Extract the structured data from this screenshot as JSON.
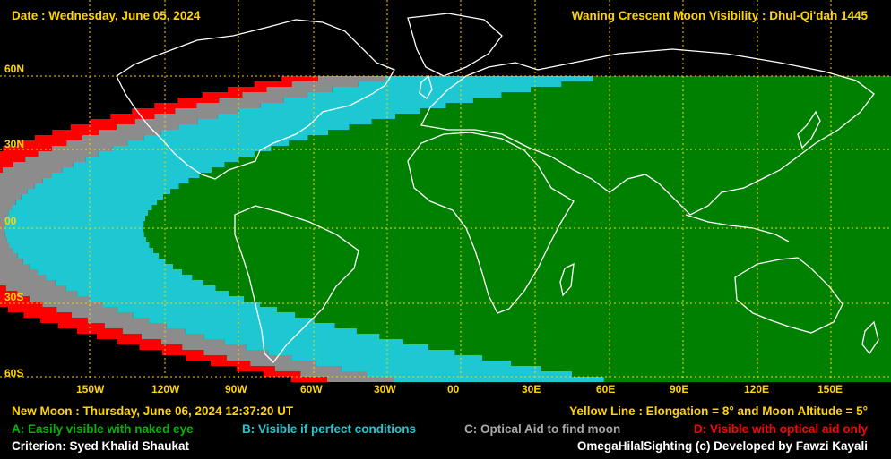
{
  "header": {
    "date": "Date : Wednesday, June 05, 2024",
    "title": "Waning Crescent Moon Visibility : Dhul-Qi'dah 1445"
  },
  "lat_labels": [
    "60N",
    "30N",
    "00",
    "30S",
    "60S"
  ],
  "lon_labels": [
    "150W",
    "120W",
    "90W",
    "60W",
    "30W",
    "00",
    "30E",
    "60E",
    "90E",
    "120E",
    "150E"
  ],
  "footer": {
    "new_moon": "New Moon : Thursday, June 06, 2024  12:37:20  UT",
    "yellow_line": "Yellow Line : Elongation = 8° and Moon Altitude = 5°",
    "legend_a": "A: Easily visible with naked eye",
    "legend_b": "B: Visible if perfect conditions",
    "legend_c": "C: Optical Aid to find moon",
    "legend_d": "D: Visible with optical aid only",
    "criterion": "Criterion: Syed Khalid Shaukat",
    "credit": "OmegaHilalSighting  (c)  Developed by Fawzi Kayali"
  },
  "colors": {
    "zone_a": "#008000",
    "zone_b": "#1ec8d2",
    "zone_c": "#8c8c8c",
    "zone_d": "#ff0000",
    "grid": "#ffd400",
    "coast": "#ffffff",
    "background": "#000000",
    "text_yellow": "#ffd400"
  }
}
